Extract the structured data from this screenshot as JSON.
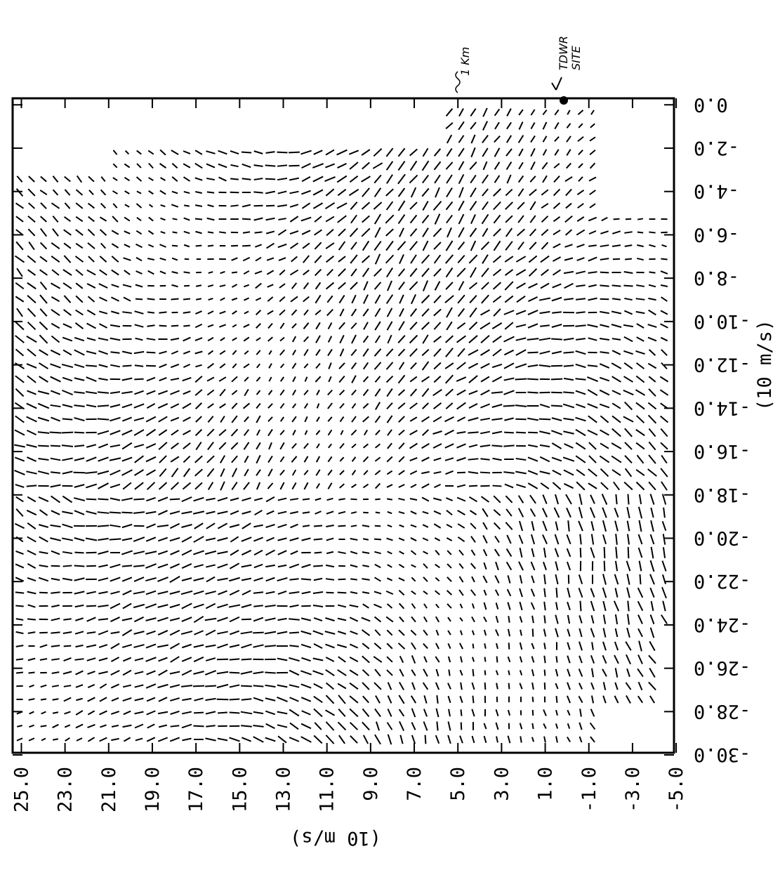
{
  "chart_data": {
    "type": "quiver",
    "x_label": "(10 m/s)",
    "y_label": "(10 m/s)",
    "annotations": [
      "TDWR",
      "SITE",
      "1 Km"
    ],
    "xlim": [
      25.4,
      -4.9
    ],
    "xticks": [
      {
        "value": 25,
        "label": "25.0"
      },
      {
        "value": 23,
        "label": "23.0"
      },
      {
        "value": 21,
        "label": "21.0"
      },
      {
        "value": 19,
        "label": "19.0"
      },
      {
        "value": 17,
        "label": "17.0"
      },
      {
        "value": 15,
        "label": "15.0"
      },
      {
        "value": 13,
        "label": "13.0"
      },
      {
        "value": 11,
        "label": "11.0"
      },
      {
        "value": 9,
        "label": "9.0"
      },
      {
        "value": 7,
        "label": "7.0"
      },
      {
        "value": 5,
        "label": "5.0"
      },
      {
        "value": 3,
        "label": "3.0"
      },
      {
        "value": 1,
        "label": "1.0"
      },
      {
        "value": -1,
        "label": "-1.0"
      },
      {
        "value": -3,
        "label": "-3.0"
      },
      {
        "value": -5,
        "label": "-5.0"
      }
    ],
    "ylim": [
      0.3,
      -29.9
    ],
    "yticks": [
      {
        "value": 0,
        "label": "0.0"
      },
      {
        "value": -2,
        "label": "-2.0"
      },
      {
        "value": -4,
        "label": "-4.0"
      },
      {
        "value": -6,
        "label": "-6.0"
      },
      {
        "value": -8,
        "label": "-8.0"
      },
      {
        "value": -10,
        "label": "-10.0"
      },
      {
        "value": -12,
        "label": "-12.0"
      },
      {
        "value": -14,
        "label": "-14.0"
      },
      {
        "value": -16,
        "label": "-16.0"
      },
      {
        "value": -18,
        "label": "-18.0"
      },
      {
        "value": -20,
        "label": "-20.0"
      },
      {
        "value": -22,
        "label": "-22.0"
      },
      {
        "value": -24,
        "label": "-24.0"
      },
      {
        "value": -26,
        "label": "-26.0"
      },
      {
        "value": -28,
        "label": "-28.0"
      },
      {
        "value": -30,
        "label": "-30.0"
      }
    ],
    "color": "#000000"
  }
}
